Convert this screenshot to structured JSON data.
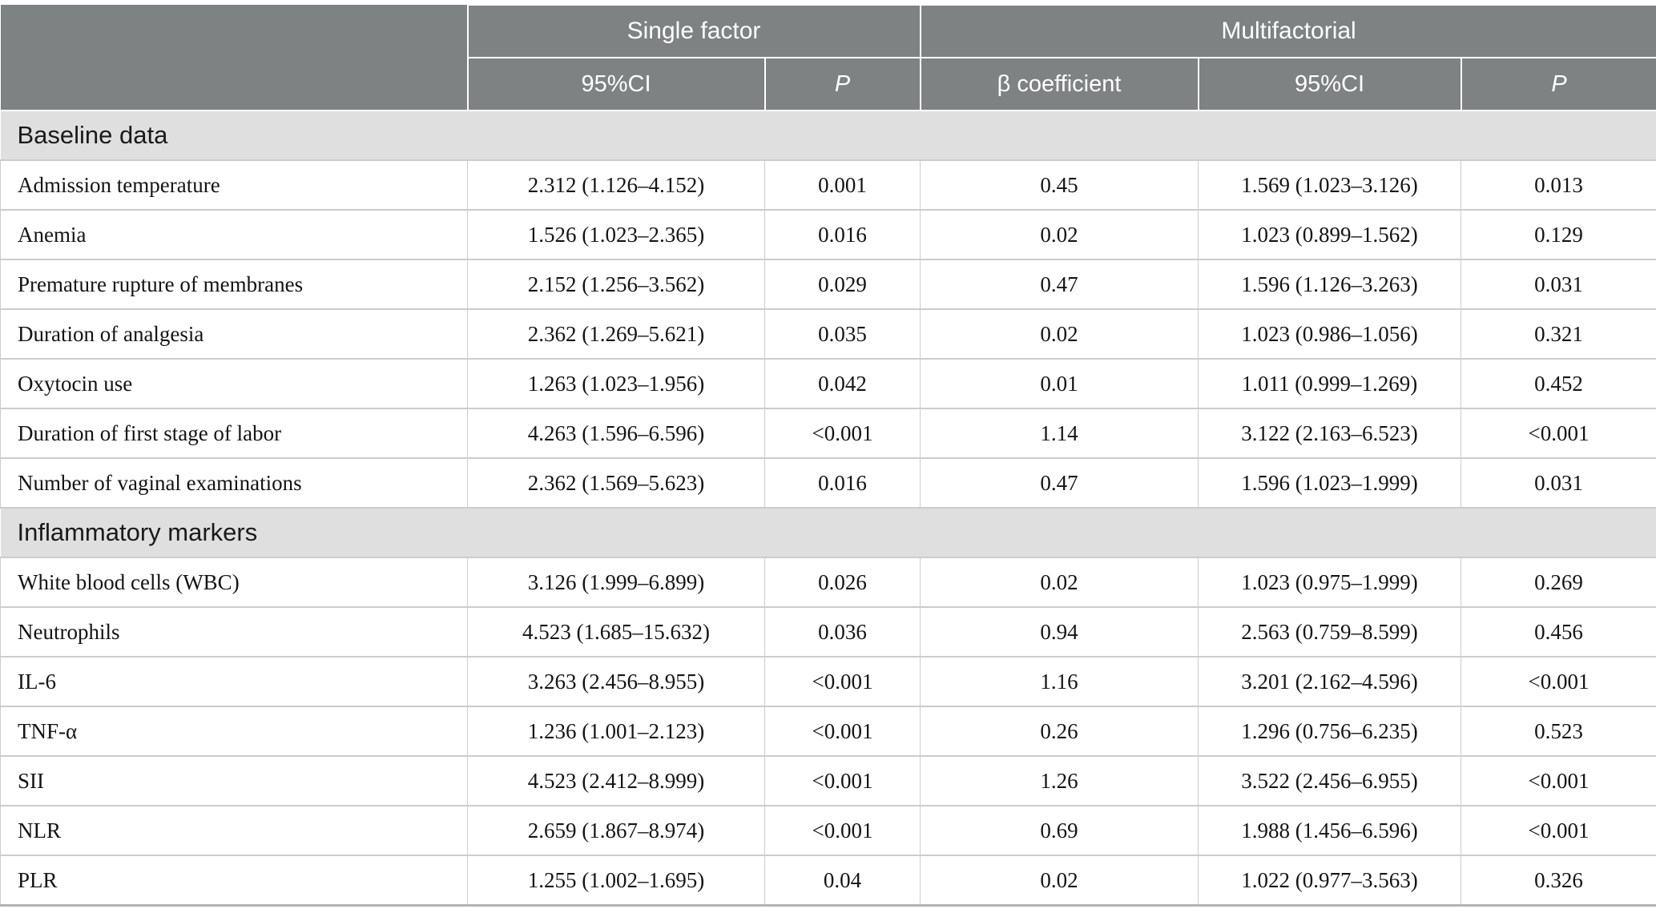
{
  "colors": {
    "header_bg": "#7f8282",
    "header_text": "#ffffff",
    "section_bg": "#e0dfdf",
    "grid_line": "#cccccc",
    "bottom_border": "#b2b2b2",
    "body_text": "#141414"
  },
  "table": {
    "header": {
      "groups": [
        {
          "label": "",
          "colspan": 1
        },
        {
          "label": "Single factor",
          "colspan": 2
        },
        {
          "label": "Multifactorial",
          "colspan": 3
        }
      ],
      "sub": [
        "95%CI",
        "P",
        "β coefficient",
        "95%CI",
        "P"
      ]
    },
    "sections": [
      {
        "title": "Baseline data",
        "rows": [
          {
            "label": "Admission temperature",
            "values": [
              "2.312 (1.126–4.152)",
              "0.001",
              "0.45",
              "1.569 (1.023–3.126)",
              "0.013"
            ]
          },
          {
            "label": "Anemia",
            "values": [
              "1.526 (1.023–2.365)",
              "0.016",
              "0.02",
              "1.023 (0.899–1.562)",
              "0.129"
            ]
          },
          {
            "label": "Premature rupture of membranes",
            "values": [
              "2.152 (1.256–3.562)",
              "0.029",
              "0.47",
              "1.596 (1.126–3.263)",
              "0.031"
            ]
          },
          {
            "label": "Duration of analgesia",
            "values": [
              "2.362 (1.269–5.621)",
              "0.035",
              "0.02",
              "1.023 (0.986–1.056)",
              "0.321"
            ]
          },
          {
            "label": "Oxytocin use",
            "values": [
              "1.263 (1.023–1.956)",
              "0.042",
              "0.01",
              "1.011 (0.999–1.269)",
              "0.452"
            ]
          },
          {
            "label": "Duration of first stage of labor",
            "values": [
              "4.263 (1.596–6.596)",
              "<0.001",
              "1.14",
              "3.122 (2.163–6.523)",
              "<0.001"
            ]
          },
          {
            "label": "Number of vaginal examinations",
            "values": [
              "2.362 (1.569–5.623)",
              "0.016",
              "0.47",
              "1.596 (1.023–1.999)",
              "0.031"
            ]
          }
        ]
      },
      {
        "title": "Inflammatory markers",
        "rows": [
          {
            "label": "White blood cells (WBC)",
            "values": [
              "3.126 (1.999–6.899)",
              "0.026",
              "0.02",
              "1.023 (0.975–1.999)",
              "0.269"
            ]
          },
          {
            "label": "Neutrophils",
            "values": [
              "4.523 (1.685–15.632)",
              "0.036",
              "0.94",
              "2.563 (0.759–8.599)",
              "0.456"
            ]
          },
          {
            "label": "IL-6",
            "values": [
              "3.263 (2.456–8.955)",
              "<0.001",
              "1.16",
              "3.201 (2.162–4.596)",
              "<0.001"
            ]
          },
          {
            "label": "TNF-α",
            "values": [
              "1.236 (1.001–2.123)",
              "<0.001",
              "0.26",
              "1.296 (0.756–6.235)",
              "0.523"
            ]
          },
          {
            "label": "SII",
            "values": [
              "4.523 (2.412–8.999)",
              "<0.001",
              "1.26",
              "3.522 (2.456–6.955)",
              "<0.001"
            ]
          },
          {
            "label": "NLR",
            "values": [
              "2.659 (1.867–8.974)",
              "<0.001",
              "0.69",
              "1.988 (1.456–6.596)",
              "<0.001"
            ]
          },
          {
            "label": "PLR",
            "values": [
              "1.255 (1.002–1.695)",
              "0.04",
              "0.02",
              "1.022 (0.977–3.563)",
              "0.326"
            ]
          }
        ]
      }
    ]
  }
}
